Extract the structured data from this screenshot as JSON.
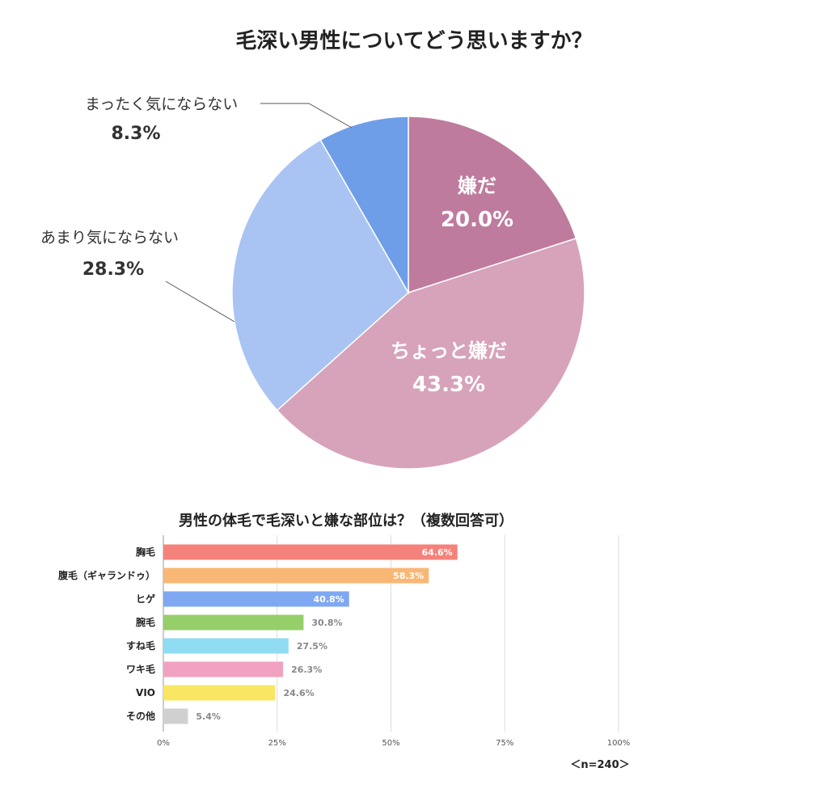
{
  "chart_data": [
    {
      "type": "pie",
      "title": "毛深い男性についてどう思いますか？",
      "categories": [
        "嫌だ",
        "ちょっと嫌だ",
        "あまり気にならない",
        "まったく気にならない"
      ],
      "values": [
        20.0,
        43.3,
        28.3,
        8.3
      ],
      "value_labels": [
        "20.0%",
        "43.3%",
        "28.3%",
        "8.3%"
      ],
      "colors": [
        "#bf7b9d",
        "#d7a3ba",
        "#a9c4f2",
        "#6f9ee8"
      ],
      "start": "12 o'clock",
      "direction": "clockwise"
    },
    {
      "type": "bar",
      "orientation": "horizontal",
      "title": "男性の体毛で毛深いと嫌な部位は？（複数回答可）",
      "categories": [
        "胸毛",
        "腹毛（ギャランドゥ）",
        "ヒゲ",
        "腕毛",
        "すね毛",
        "ワキ毛",
        "VIO",
        "その他"
      ],
      "values": [
        64.6,
        58.3,
        40.8,
        30.8,
        27.5,
        26.3,
        24.6,
        5.4
      ],
      "value_labels": [
        "64.6%",
        "58.3%",
        "40.8%",
        "30.8%",
        "27.5%",
        "26.3%",
        "24.6%",
        "5.4%"
      ],
      "colors": [
        "#f5827a",
        "#f9b775",
        "#7fa8f2",
        "#96cf6a",
        "#90dcf2",
        "#f0a2c0",
        "#f9e764",
        "#d0d0d0"
      ],
      "xlim": [
        0,
        100
      ],
      "xticks": [
        "0%",
        "25%",
        "50%",
        "75%",
        "100%"
      ],
      "grid": true,
      "note": "＜n=240＞"
    }
  ]
}
